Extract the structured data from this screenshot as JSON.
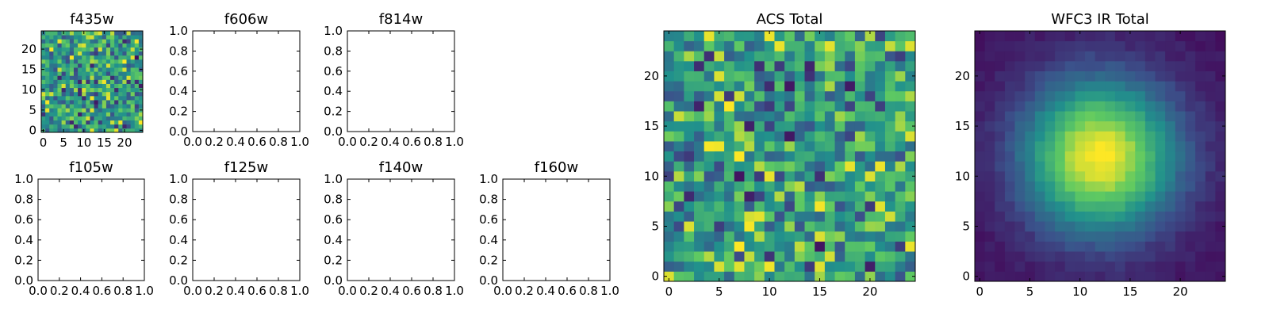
{
  "figure": {
    "colormap": "viridis",
    "colormap_stops": [
      "#440154",
      "#3b528b",
      "#21918c",
      "#5ec962",
      "#fde725"
    ]
  },
  "chart_data": [
    {
      "type": "heatmap",
      "title": "f435w",
      "image_size": [
        25,
        25
      ],
      "xticks": [
        "0",
        "5",
        "10",
        "15",
        "20"
      ],
      "yticks": [
        "0",
        "5",
        "10",
        "15",
        "20"
      ],
      "xlim": [
        -0.5,
        24.5
      ],
      "ylim": [
        -0.5,
        24.5
      ],
      "pattern": "noise"
    },
    {
      "type": "empty",
      "title": "f606w",
      "xticks": [
        "0.0",
        "0.2",
        "0.4",
        "0.6",
        "0.8",
        "1.0"
      ],
      "yticks": [
        "0.0",
        "0.2",
        "0.4",
        "0.6",
        "0.8",
        "1.0"
      ],
      "xlim": [
        0,
        1
      ],
      "ylim": [
        0,
        1
      ]
    },
    {
      "type": "empty",
      "title": "f814w",
      "xticks": [
        "0.0",
        "0.2",
        "0.4",
        "0.6",
        "0.8",
        "1.0"
      ],
      "yticks": [
        "0.0",
        "0.2",
        "0.4",
        "0.6",
        "0.8",
        "1.0"
      ],
      "xlim": [
        0,
        1
      ],
      "ylim": [
        0,
        1
      ]
    },
    {
      "type": "empty",
      "title": "f105w",
      "xticks": [
        "0.0",
        "0.2",
        "0.4",
        "0.6",
        "0.8",
        "1.0"
      ],
      "yticks": [
        "0.0",
        "0.2",
        "0.4",
        "0.6",
        "0.8",
        "1.0"
      ],
      "xlim": [
        0,
        1
      ],
      "ylim": [
        0,
        1
      ]
    },
    {
      "type": "empty",
      "title": "f125w",
      "xticks": [
        "0.0",
        "0.2",
        "0.4",
        "0.6",
        "0.8",
        "1.0"
      ],
      "yticks": [
        "0.0",
        "0.2",
        "0.4",
        "0.6",
        "0.8",
        "1.0"
      ],
      "xlim": [
        0,
        1
      ],
      "ylim": [
        0,
        1
      ]
    },
    {
      "type": "empty",
      "title": "f140w",
      "xticks": [
        "0.0",
        "0.2",
        "0.4",
        "0.6",
        "0.8",
        "1.0"
      ],
      "yticks": [
        "0.0",
        "0.2",
        "0.4",
        "0.6",
        "0.8",
        "1.0"
      ],
      "xlim": [
        0,
        1
      ],
      "ylim": [
        0,
        1
      ]
    },
    {
      "type": "empty",
      "title": "f160w",
      "xticks": [
        "0.0",
        "0.2",
        "0.4",
        "0.6",
        "0.8",
        "1.0"
      ],
      "yticks": [
        "0.0",
        "0.2",
        "0.4",
        "0.6",
        "0.8",
        "1.0"
      ],
      "xlim": [
        0,
        1
      ],
      "ylim": [
        0,
        1
      ]
    },
    {
      "type": "heatmap",
      "title": "ACS Total",
      "image_size": [
        25,
        25
      ],
      "xticks": [
        "0",
        "5",
        "10",
        "15",
        "20"
      ],
      "yticks": [
        "0",
        "5",
        "10",
        "15",
        "20"
      ],
      "xlim": [
        -0.5,
        24.5
      ],
      "ylim": [
        -0.5,
        24.5
      ],
      "pattern": "noise"
    },
    {
      "type": "heatmap",
      "title": "WFC3 IR Total",
      "image_size": [
        25,
        25
      ],
      "xticks": [
        "0",
        "5",
        "10",
        "15",
        "20"
      ],
      "yticks": [
        "0",
        "5",
        "10",
        "15",
        "20"
      ],
      "xlim": [
        -0.5,
        24.5
      ],
      "ylim": [
        -0.5,
        24.5
      ],
      "pattern": "gaussian",
      "peak_center": [
        12,
        12
      ]
    }
  ]
}
